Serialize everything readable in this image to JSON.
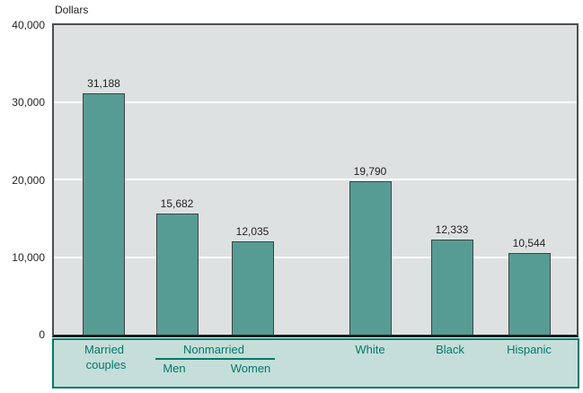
{
  "chart_data": {
    "type": "bar",
    "title": "Dollars",
    "ylabel": "Dollars",
    "ylim": [
      0,
      40000
    ],
    "ytick_labels": [
      "40,000",
      "30,000",
      "20,000",
      "10,000",
      "0"
    ],
    "grid": "horizontal white gridlines every 10,000; legend band below axis",
    "legend_position": "none",
    "bars": [
      {
        "category": "Married couples",
        "group": "",
        "value": 31188,
        "value_label": "31,188"
      },
      {
        "category": "Men",
        "group": "Nonmarried",
        "value": 15682,
        "value_label": "15,682"
      },
      {
        "category": "Women",
        "group": "Nonmarried",
        "value": 12035,
        "value_label": "12,035"
      },
      {
        "category": "White",
        "group": "",
        "value": 19790,
        "value_label": "19,790"
      },
      {
        "category": "Black",
        "group": "",
        "value": 12333,
        "value_label": "12,333"
      },
      {
        "category": "Hispanic",
        "group": "",
        "value": 10544,
        "value_label": "10,544"
      }
    ],
    "colors": {
      "bar_fill": "#579c94",
      "bar_border": "#3f4245",
      "plot_background": "#dee1e2",
      "gridline": "#ffffff",
      "band_fill": "#c5ded9",
      "band_border": "#00796b",
      "band_text": "#00796b",
      "axis_text": "#231f20"
    }
  },
  "axis_band": {
    "married_line1": "Married",
    "married_line2": "couples",
    "nonmarried": "Nonmarried",
    "men": "Men",
    "women": "Women",
    "white": "White",
    "black": "Black",
    "hispanic": "Hispanic"
  }
}
